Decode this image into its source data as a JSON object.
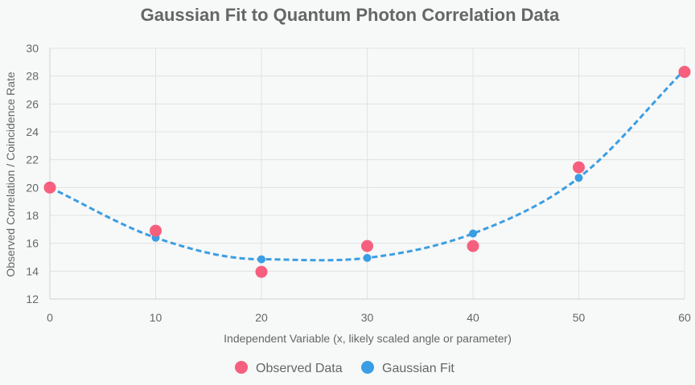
{
  "chart_data": {
    "type": "line",
    "title": "Gaussian Fit to Quantum Photon Correlation Data",
    "xlabel": "Independent Variable (x, likely scaled angle or parameter)",
    "ylabel": "Observed Correlation / Coincidence Rate",
    "xlim": [
      0,
      60
    ],
    "ylim": [
      12,
      30
    ],
    "x_ticks": [
      0,
      10,
      20,
      30,
      40,
      50,
      60
    ],
    "y_ticks": [
      12,
      14,
      16,
      18,
      20,
      22,
      24,
      26,
      28,
      30
    ],
    "grid": true,
    "legend_position": "bottom",
    "series": [
      {
        "name": "Observed Data",
        "kind": "scatter",
        "color": "#f6607e",
        "points": [
          [
            0,
            20.0
          ],
          [
            10,
            16.9
          ],
          [
            20,
            13.95
          ],
          [
            30,
            15.8
          ],
          [
            40,
            15.8
          ],
          [
            50,
            21.45
          ],
          [
            60,
            28.3
          ]
        ]
      },
      {
        "name": "Gaussian Fit",
        "kind": "line",
        "style": "dashed",
        "color": "#3a9ee4",
        "points": [
          [
            0,
            20.0
          ],
          [
            10,
            16.4
          ],
          [
            20,
            14.85
          ],
          [
            30,
            14.95
          ],
          [
            40,
            16.7
          ],
          [
            50,
            20.7
          ],
          [
            60,
            28.45
          ]
        ]
      }
    ]
  }
}
